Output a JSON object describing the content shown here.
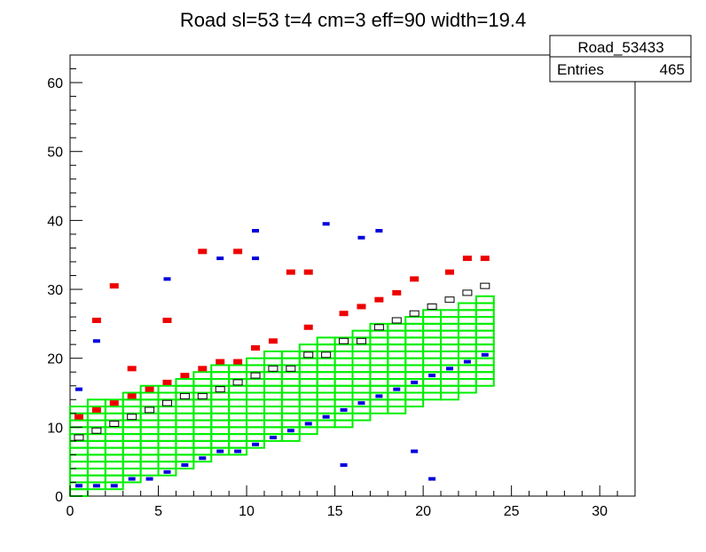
{
  "chart_data": {
    "type": "heatmap",
    "title": "Road sl=53 t=4 cm=3 eff=90 width=19.4",
    "xlim": [
      0,
      32
    ],
    "ylim": [
      0,
      64
    ],
    "x_ticks": [
      "0",
      "5",
      "10",
      "15",
      "20",
      "25",
      "30"
    ],
    "y_ticks": [
      "0",
      "10",
      "20",
      "30",
      "40",
      "50",
      "60"
    ],
    "stats": {
      "name": "Road_53433",
      "entries_label": "Entries",
      "entries_value": "465"
    },
    "colors": {
      "road_outline": "#00ee00",
      "upper_hits": "#ee0000",
      "lower_hits": "#0000dd",
      "core_boxes": "#000000"
    },
    "road": {
      "start_x": 0,
      "end_x": 24,
      "bottom_start": 0,
      "slope": 0.69,
      "width": 13
    },
    "red_points": [
      [
        0.5,
        11.5
      ],
      [
        1.5,
        12.5
      ],
      [
        2.5,
        13.5
      ],
      [
        3.5,
        14.5
      ],
      [
        4.5,
        15.5
      ],
      [
        5.5,
        16.5
      ],
      [
        6.5,
        17.5
      ],
      [
        7.5,
        18.5
      ],
      [
        8.5,
        19.5
      ],
      [
        9.5,
        19.5
      ],
      [
        10.5,
        21.5
      ],
      [
        11.5,
        22.5
      ],
      [
        13.5,
        24.5
      ],
      [
        15.5,
        26.5
      ],
      [
        16.5,
        27.5
      ],
      [
        17.5,
        28.5
      ],
      [
        18.5,
        29.5
      ],
      [
        19.5,
        31.5
      ],
      [
        21.5,
        32.5
      ],
      [
        22.5,
        34.5
      ],
      [
        23.5,
        34.5
      ],
      [
        7.5,
        35.5
      ],
      [
        9.5,
        35.5
      ],
      [
        12.5,
        32.5
      ],
      [
        13.5,
        32.5
      ],
      [
        3.5,
        18.5
      ],
      [
        5.5,
        25.5
      ],
      [
        2.5,
        30.5
      ],
      [
        1.5,
        25.5
      ]
    ],
    "blue_points": [
      [
        0.5,
        1.5
      ],
      [
        1.5,
        1.5
      ],
      [
        2.5,
        1.5
      ],
      [
        3.5,
        2.5
      ],
      [
        4.5,
        2.5
      ],
      [
        5.5,
        3.5
      ],
      [
        6.5,
        4.5
      ],
      [
        7.5,
        5.5
      ],
      [
        8.5,
        6.5
      ],
      [
        9.5,
        6.5
      ],
      [
        10.5,
        7.5
      ],
      [
        11.5,
        8.5
      ],
      [
        12.5,
        9.5
      ],
      [
        13.5,
        10.5
      ],
      [
        14.5,
        11.5
      ],
      [
        15.5,
        12.5
      ],
      [
        16.5,
        13.5
      ],
      [
        17.5,
        14.5
      ],
      [
        18.5,
        15.5
      ],
      [
        19.5,
        16.5
      ],
      [
        20.5,
        17.5
      ],
      [
        21.5,
        18.5
      ],
      [
        22.5,
        19.5
      ],
      [
        23.5,
        20.5
      ],
      [
        10.5,
        38.5
      ],
      [
        14.5,
        39.5
      ],
      [
        16.5,
        37.5
      ],
      [
        17.5,
        38.5
      ],
      [
        8.5,
        34.5
      ],
      [
        10.5,
        34.5
      ],
      [
        5.5,
        31.5
      ],
      [
        1.5,
        22.5
      ],
      [
        0.5,
        15.5
      ],
      [
        20.5,
        2.5
      ],
      [
        15.5,
        4.5
      ],
      [
        19.5,
        6.5
      ]
    ],
    "black_points": [
      [
        0.5,
        8.5
      ],
      [
        1.5,
        9.5
      ],
      [
        2.5,
        10.5
      ],
      [
        3.5,
        11.5
      ],
      [
        4.5,
        12.5
      ],
      [
        5.5,
        13.5
      ],
      [
        6.5,
        14.5
      ],
      [
        7.5,
        14.5
      ],
      [
        8.5,
        15.5
      ],
      [
        9.5,
        16.5
      ],
      [
        10.5,
        17.5
      ],
      [
        11.5,
        18.5
      ],
      [
        12.5,
        18.5
      ],
      [
        13.5,
        20.5
      ],
      [
        14.5,
        20.5
      ],
      [
        15.5,
        22.5
      ],
      [
        16.5,
        22.5
      ],
      [
        17.5,
        24.5
      ],
      [
        18.5,
        25.5
      ],
      [
        19.5,
        26.5
      ],
      [
        20.5,
        27.5
      ],
      [
        21.5,
        28.5
      ],
      [
        22.5,
        29.5
      ],
      [
        23.5,
        30.5
      ]
    ]
  }
}
